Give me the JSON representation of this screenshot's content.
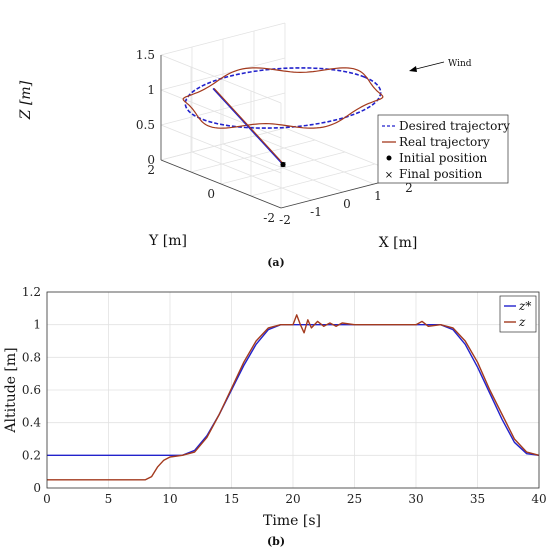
{
  "figure": {
    "caption_a": "(a)",
    "caption_b": "(b)"
  },
  "colors": {
    "desired": "#2222cc",
    "real": "#a33a1e",
    "marker": "#000000"
  },
  "chart_data": [
    {
      "type": "line",
      "projection": "3d",
      "xlabel": "X [m]",
      "ylabel": "Y [m]",
      "zlabel": "Z [m]",
      "xlim": [
        -2,
        2
      ],
      "ylim": [
        -2,
        2
      ],
      "zlim": [
        0,
        1.5
      ],
      "x_ticks": [
        "-2",
        "-1",
        "0",
        "1",
        "2"
      ],
      "y_ticks": [
        "2",
        "0",
        "-2"
      ],
      "z_ticks": [
        "0",
        "0.5",
        "1",
        "1.5"
      ],
      "grid": true,
      "legend_position": "lower-right",
      "annotation": "Wind",
      "series": [
        {
          "name": "Desired trajectory",
          "style": "dashed",
          "shape": "circle",
          "center": [
            0,
            0
          ],
          "radius": 1.5,
          "altitude": 1.0
        },
        {
          "name": "Real trajectory",
          "style": "solid",
          "shape": "circle",
          "center": [
            0,
            0
          ],
          "radius": 1.5,
          "altitude": 1.0
        }
      ],
      "markers": [
        {
          "name": "Initial position",
          "symbol": "dot",
          "point": [
            0,
            0,
            0.05
          ]
        },
        {
          "name": "Final position",
          "symbol": "cross",
          "point": [
            0,
            0,
            0.05
          ]
        }
      ]
    },
    {
      "type": "line",
      "xlabel": "Time [s]",
      "ylabel": "Altitude [m]",
      "xlim": [
        0,
        40
      ],
      "ylim": [
        0,
        1.2
      ],
      "x_ticks": [
        "0",
        "5",
        "10",
        "15",
        "20",
        "25",
        "30",
        "35",
        "40"
      ],
      "y_ticks": [
        "0",
        "0.2",
        "0.4",
        "0.6",
        "0.8",
        "1",
        "1.2"
      ],
      "grid": true,
      "legend_position": "top-right",
      "series": [
        {
          "name": "z*",
          "x": [
            0,
            11,
            12,
            13,
            14,
            15,
            16,
            17,
            18,
            19,
            20,
            32,
            33,
            34,
            35,
            36,
            37,
            38,
            39,
            40
          ],
          "y": [
            0.2,
            0.2,
            0.23,
            0.32,
            0.45,
            0.6,
            0.75,
            0.88,
            0.97,
            1.0,
            1.0,
            1.0,
            0.97,
            0.88,
            0.74,
            0.58,
            0.42,
            0.28,
            0.21,
            0.2
          ]
        },
        {
          "name": "z",
          "x": [
            0,
            8,
            8.5,
            9,
            9.5,
            10,
            11,
            12,
            13,
            14,
            15,
            16,
            17,
            18,
            19,
            20,
            20.3,
            20.6,
            20.9,
            21.2,
            21.5,
            22,
            22.5,
            23,
            23.5,
            24,
            25,
            26,
            27,
            28,
            29,
            30,
            30.5,
            31,
            32,
            33,
            34,
            35,
            36,
            37,
            38,
            39,
            40
          ],
          "y": [
            0.05,
            0.05,
            0.07,
            0.13,
            0.17,
            0.19,
            0.2,
            0.22,
            0.31,
            0.45,
            0.61,
            0.77,
            0.9,
            0.98,
            1.0,
            1.0,
            1.06,
            1.0,
            0.95,
            1.03,
            0.98,
            1.02,
            0.99,
            1.01,
            0.99,
            1.01,
            1.0,
            1.0,
            1.0,
            1.0,
            1.0,
            1.0,
            1.02,
            0.99,
            1.0,
            0.98,
            0.9,
            0.77,
            0.6,
            0.45,
            0.3,
            0.22,
            0.2
          ]
        }
      ]
    }
  ]
}
